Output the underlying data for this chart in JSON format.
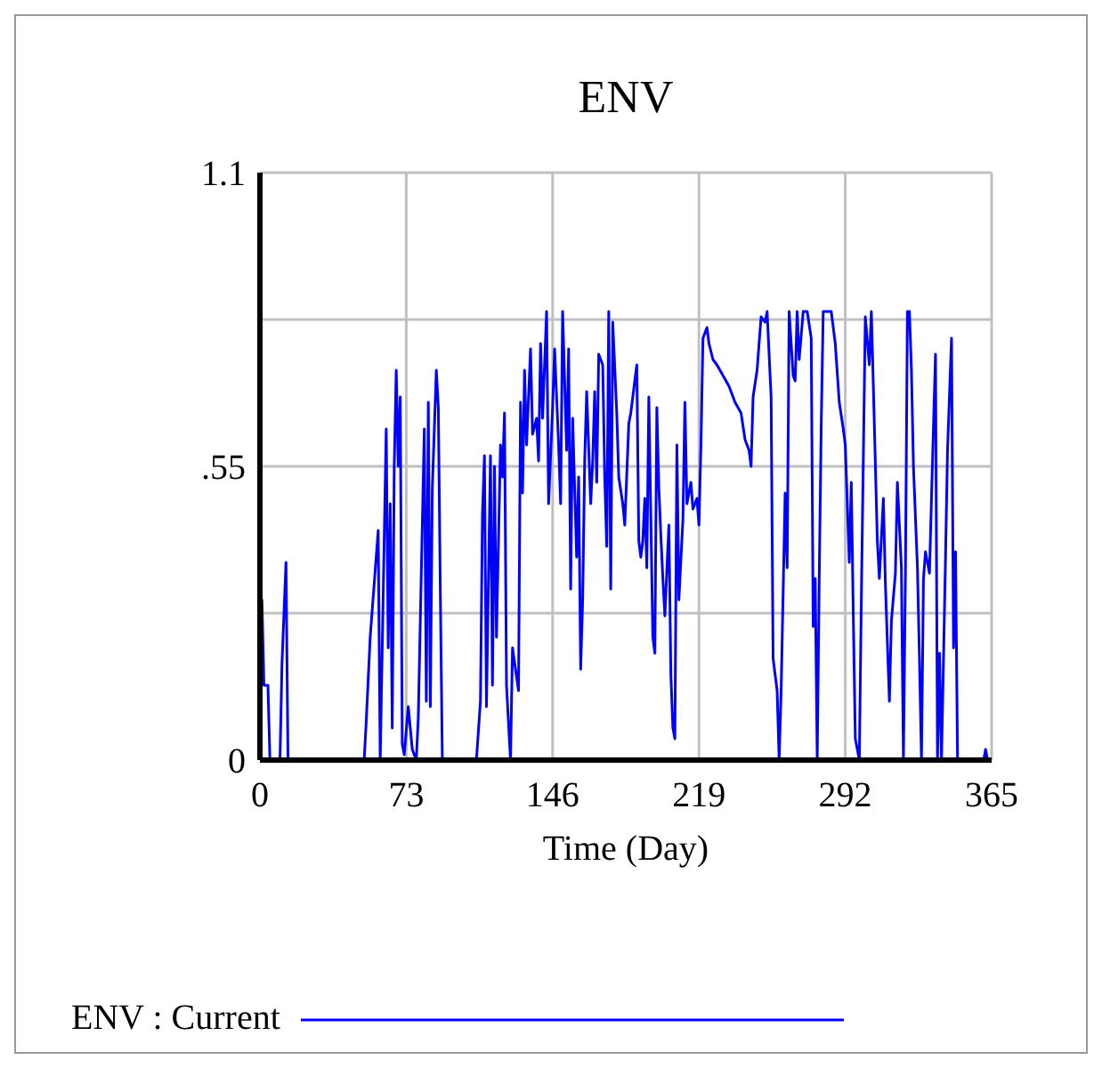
{
  "chart_data": {
    "type": "line",
    "title": "ENV",
    "xlabel": "Time (Day)",
    "x": [
      0,
      1,
      2,
      4,
      5,
      10,
      11,
      13,
      14,
      52,
      53,
      55,
      57,
      59,
      60,
      63,
      64,
      65,
      66,
      67,
      68,
      69,
      70,
      71,
      72,
      74,
      76,
      78,
      79,
      80,
      82,
      83,
      84,
      85,
      86,
      88,
      89,
      90,
      91,
      108,
      110,
      111,
      112,
      113,
      115,
      116,
      117,
      118,
      120,
      121,
      122,
      123,
      125,
      126,
      129,
      130,
      131,
      132,
      133,
      135,
      136,
      138,
      139,
      140,
      141,
      143,
      144,
      146,
      147,
      149,
      150,
      151,
      153,
      154,
      155,
      156,
      158,
      159,
      160,
      161,
      162,
      163,
      165,
      166,
      167,
      168,
      169,
      171,
      172,
      173,
      174,
      175,
      176,
      178,
      179,
      181,
      182,
      184,
      185,
      186,
      188,
      189,
      190,
      191,
      192,
      193,
      194,
      196,
      197,
      198,
      199,
      200,
      201,
      202,
      204,
      205,
      206,
      207,
      208,
      209,
      211,
      212,
      213,
      215,
      216,
      218,
      219,
      220,
      221,
      223,
      224,
      226,
      228,
      231,
      234,
      237,
      240,
      242,
      244,
      245,
      246,
      248,
      250,
      252,
      253,
      255,
      256,
      258,
      259,
      260,
      262,
      263,
      264,
      266,
      267,
      268,
      269,
      271,
      273,
      275,
      276,
      277,
      278,
      279,
      280,
      281,
      285,
      287,
      289,
      291,
      292,
      294,
      295,
      296,
      297,
      299,
      300,
      302,
      304,
      305,
      306,
      308,
      309,
      311,
      312,
      314,
      315,
      317,
      318,
      320,
      321,
      322,
      323,
      324,
      325,
      326,
      328,
      329,
      330,
      331,
      332,
      334,
      335,
      337,
      338,
      339,
      340,
      342,
      343,
      345,
      346,
      347,
      348,
      361,
      362,
      363,
      365
    ],
    "series": [
      {
        "name": "ENV : Current",
        "color": "#0000ff",
        "values": [
          0.3,
          0.3,
          0.14,
          0.14,
          0,
          0,
          0.18,
          0.37,
          0,
          0,
          0.07,
          0.23,
          0.33,
          0.43,
          0,
          0.62,
          0.21,
          0.48,
          0.06,
          0.55,
          0.73,
          0.55,
          0.68,
          0.03,
          0.01,
          0.1,
          0.02,
          0,
          0.08,
          0.26,
          0.62,
          0.11,
          0.67,
          0.1,
          0.51,
          0.73,
          0.66,
          0.31,
          0,
          0,
          0.11,
          0.46,
          0.57,
          0.1,
          0.57,
          0.14,
          0.55,
          0.23,
          0.59,
          0.53,
          0.65,
          0.14,
          0,
          0.21,
          0.13,
          0.67,
          0.5,
          0.73,
          0.59,
          0.77,
          0.61,
          0.64,
          0.56,
          0.78,
          0.64,
          0.84,
          0.48,
          0.66,
          0.77,
          0.59,
          0.48,
          0.84,
          0.58,
          0.77,
          0.32,
          0.64,
          0.38,
          0.53,
          0.17,
          0.3,
          0.56,
          0.69,
          0.48,
          0.56,
          0.69,
          0.52,
          0.76,
          0.74,
          0.53,
          0.4,
          0.84,
          0.32,
          0.82,
          0.65,
          0.53,
          0.48,
          0.44,
          0.63,
          0.65,
          0.68,
          0.74,
          0.41,
          0.38,
          0.41,
          0.49,
          0.36,
          0.68,
          0.23,
          0.2,
          0.66,
          0.51,
          0.42,
          0.34,
          0.27,
          0.44,
          0.16,
          0.06,
          0.04,
          0.59,
          0.3,
          0.45,
          0.67,
          0.48,
          0.52,
          0.47,
          0.49,
          0.44,
          0.59,
          0.79,
          0.81,
          0.78,
          0.75,
          0.74,
          0.72,
          0.7,
          0.67,
          0.65,
          0.6,
          0.58,
          0.55,
          0.68,
          0.73,
          0.83,
          0.82,
          0.84,
          0.68,
          0.19,
          0.13,
          0,
          0.13,
          0.5,
          0.36,
          0.84,
          0.72,
          0.71,
          0.84,
          0.75,
          0.84,
          0.84,
          0.79,
          0.25,
          0.34,
          0,
          0.34,
          0.63,
          0.84,
          0.84,
          0.78,
          0.67,
          0.62,
          0.59,
          0.37,
          0.52,
          0.27,
          0.04,
          0,
          0.3,
          0.83,
          0.74,
          0.84,
          0.7,
          0.41,
          0.34,
          0.49,
          0.33,
          0.11,
          0.26,
          0.35,
          0.52,
          0.36,
          0,
          0.35,
          0.84,
          0.84,
          0.73,
          0.55,
          0.36,
          0.19,
          0,
          0.34,
          0.39,
          0.35,
          0.49,
          0.76,
          0,
          0.2,
          0,
          0.38,
          0.58,
          0.79,
          0.21,
          0.39,
          0,
          0,
          0.02,
          0,
          0
        ]
      }
    ],
    "xlim": [
      0,
      365
    ],
    "xticks": [
      0,
      73,
      146,
      219,
      292,
      365
    ],
    "ylim": [
      0,
      1.1
    ],
    "yticks": [
      {
        "value": 0,
        "label": "0"
      },
      {
        "value": 0.275,
        "label": null
      },
      {
        "value": 0.55,
        "label": ".55"
      },
      {
        "value": 0.825,
        "label": null
      },
      {
        "value": 1.1,
        "label": "1.1"
      }
    ],
    "grid": true,
    "legend": "bottom"
  }
}
